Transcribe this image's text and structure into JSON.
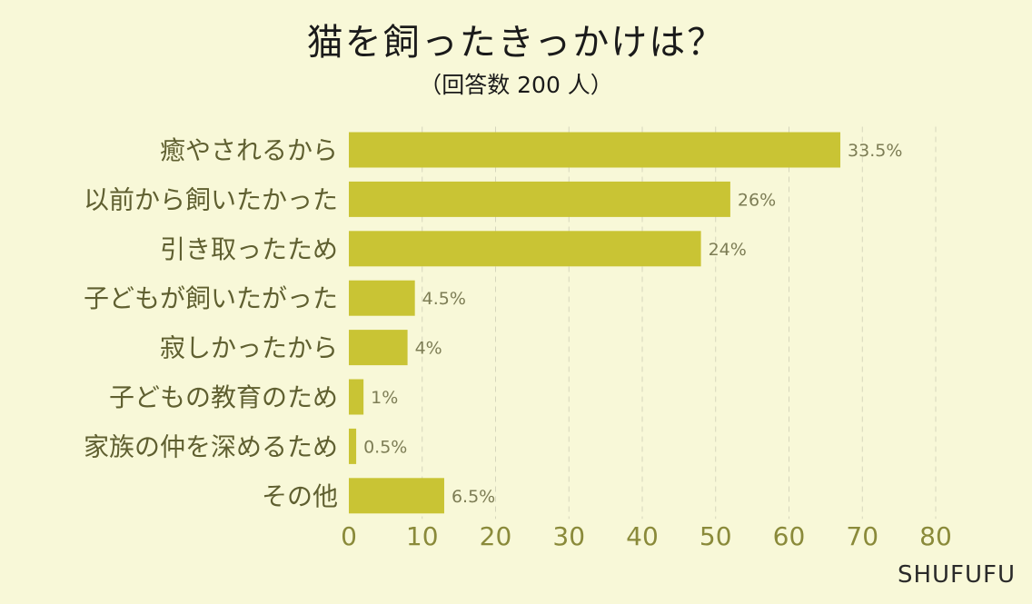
{
  "header": {
    "title": "猫を飼ったきっかけは？",
    "subtitle": "（回答数 200 人）"
  },
  "brand": "SHUFUFU",
  "colors": {
    "background": "#f8f8d8",
    "bar": "#c9c434",
    "axis_text": "#8a8a3a"
  },
  "chart_data": {
    "type": "bar",
    "orientation": "horizontal",
    "title": "猫を飼ったきっかけは？",
    "subtitle": "（回答数 200 人）",
    "categories": [
      "癒やされるから",
      "以前から飼いたかった",
      "引き取ったため",
      "子どもが飼いたがった",
      "寂しかったから",
      "子どもの教育のため",
      "家族の仲を深めるため",
      "その他"
    ],
    "values": [
      67,
      52,
      48,
      9,
      8,
      2,
      1,
      13
    ],
    "value_labels": [
      "33.5%",
      "26%",
      "24%",
      "4.5%",
      "4%",
      "1%",
      "0.5%",
      "6.5%"
    ],
    "xlim": [
      0,
      80
    ],
    "xticks": [
      0,
      10,
      20,
      30,
      40,
      50,
      60,
      70,
      80
    ],
    "grid": true,
    "legend": "none"
  }
}
